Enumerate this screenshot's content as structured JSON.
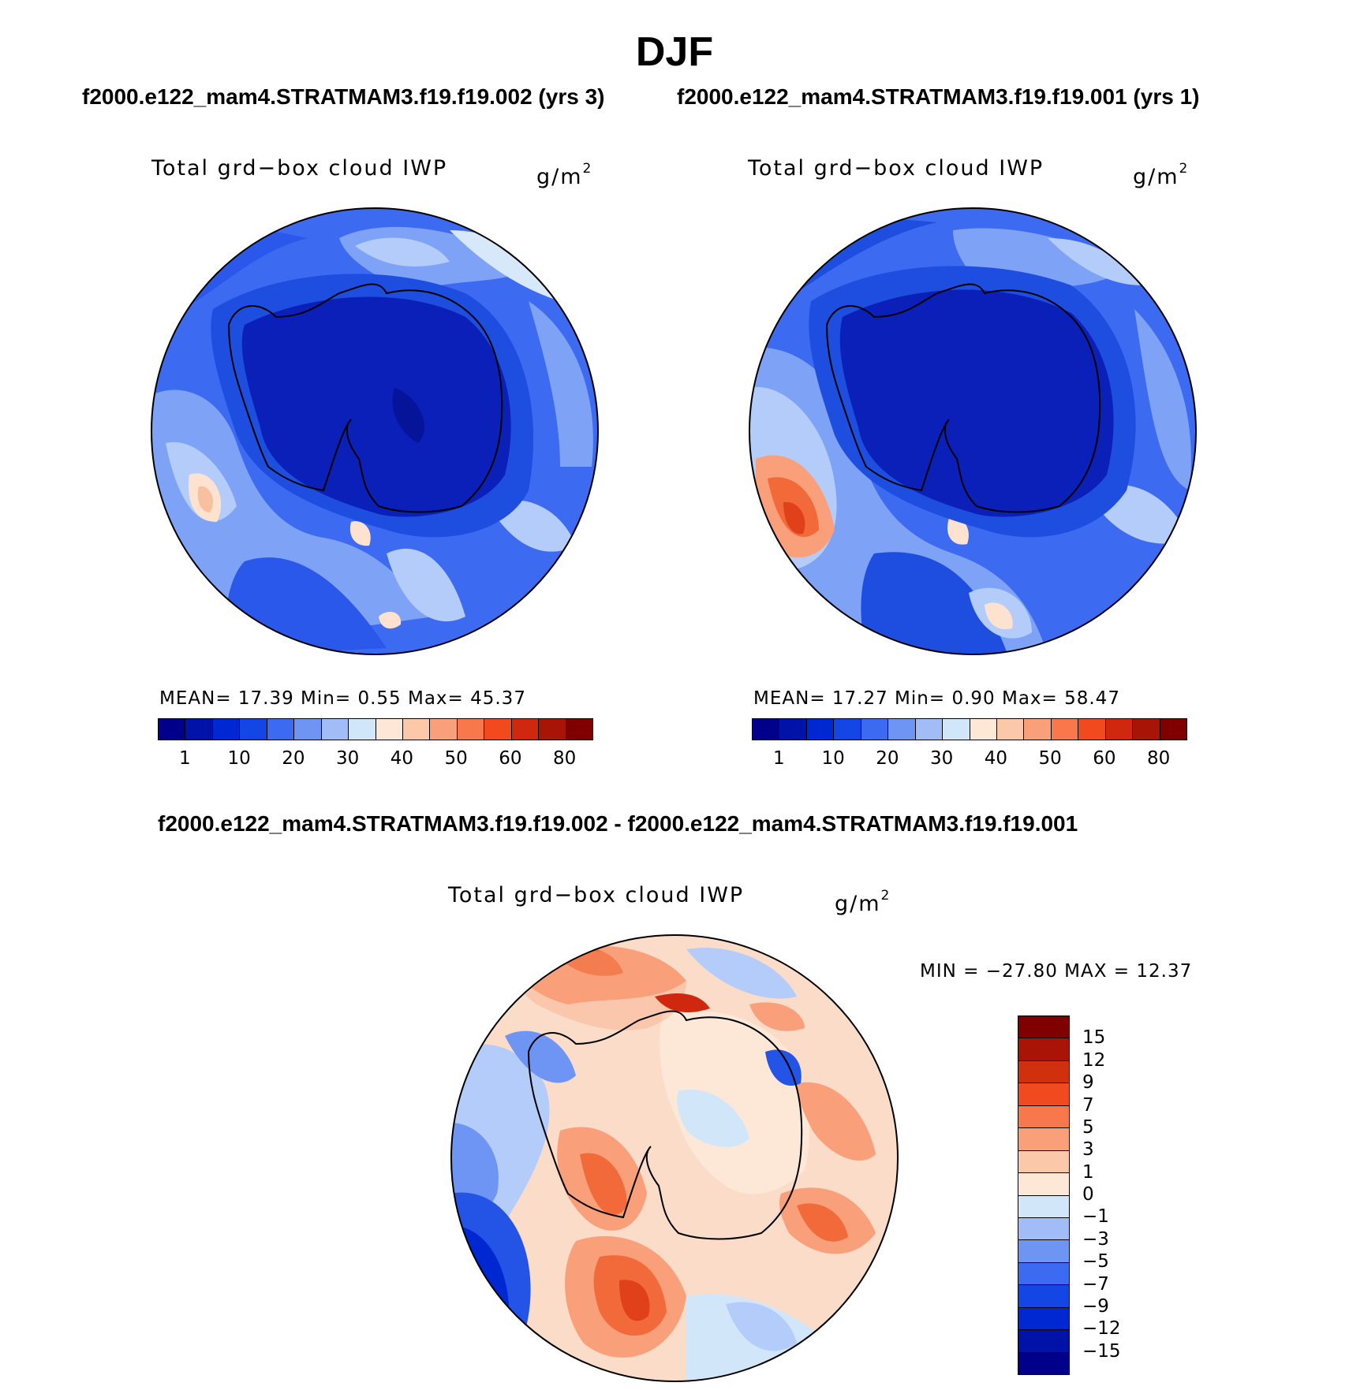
{
  "title": "DJF",
  "top_titles": {
    "left": "f2000.e122_mam4.STRATMAM3.f19.f19.002 (yrs 3)",
    "right": "f2000.e122_mam4.STRATMAM3.f19.f19.001 (yrs 1)"
  },
  "diff_title": "f2000.e122_mam4.STRATMAM3.f19.f19.002 - f2000.e122_mam4.STRATMAM3.f19.f19.001",
  "panels": [
    {
      "variable": "Total grd−box cloud IWP",
      "units": "g/m",
      "units_sup": "2",
      "stats": "MEAN=  17.39  Min=    0.55  Max=  45.37"
    },
    {
      "variable": "Total grd−box cloud IWP",
      "units": "g/m",
      "units_sup": "2",
      "stats": "MEAN=  17.27  Min=    0.90  Max=  58.47"
    }
  ],
  "diff_panel": {
    "variable": "Total grd−box cloud IWP",
    "units": "g/m",
    "units_sup": "2",
    "stats": "MIN = −27.80 MAX =   12.37"
  },
  "colorbar_top": {
    "colors": [
      "#00008a",
      "#0012a8",
      "#0028d2",
      "#1446e6",
      "#3c6af0",
      "#6e94f4",
      "#a2bcf8",
      "#d2e6fa",
      "#fde8d8",
      "#fcc8aa",
      "#f9a07a",
      "#f8784c",
      "#f04a1e",
      "#d0280e",
      "#a81406",
      "#800000"
    ],
    "labels": [
      "1",
      "10",
      "20",
      "30",
      "40",
      "50",
      "60",
      "80"
    ]
  },
  "colorbar_diff": {
    "colors": [
      "#800000",
      "#a81406",
      "#d0300e",
      "#f04a1e",
      "#f8784c",
      "#f9a07a",
      "#fcc8aa",
      "#fde8d8",
      "#d2e6fa",
      "#a2bcf8",
      "#6e94f4",
      "#3c6af0",
      "#1446e6",
      "#0028d2",
      "#0012a8",
      "#00008a"
    ],
    "labels": [
      "15",
      "12",
      "9",
      "7",
      "5",
      "3",
      "1",
      "0",
      "−1",
      "−3",
      "−5",
      "−7",
      "−9",
      "−12",
      "−15"
    ]
  },
  "map_colors": {
    "ant_deep": "#0a20b8",
    "ant_core": "#06149a",
    "ant_rim": "#1e4ee0",
    "ocean_mid": "#3c6af0",
    "ocean_light": "#7ea2f6",
    "ocean_pale": "#b4ccfa",
    "very_pale": "#d8e8fb",
    "warm1": "#fde2d0",
    "warm2": "#f9a07a",
    "warm3": "#f26a3a",
    "warm4": "#e0401a",
    "diff_base": "#fbdcc8",
    "diff_blue": "#2454e6",
    "diff_darkblue": "#00108a",
    "diff_red": "#e8481c"
  }
}
